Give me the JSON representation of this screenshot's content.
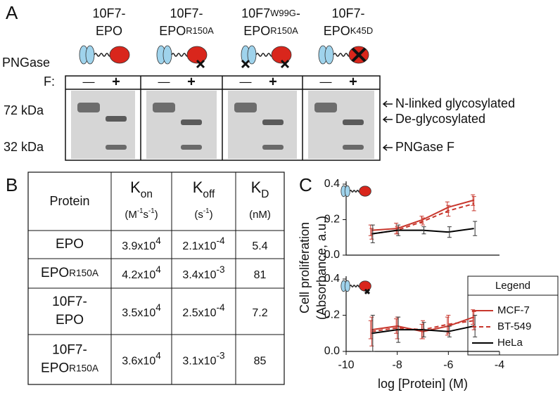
{
  "panel_a": {
    "label": "A",
    "constructs": [
      {
        "lines": [
          [
            {
              "text": "10F7-"
            }
          ],
          [
            {
              "text": "EPO"
            }
          ]
        ]
      },
      {
        "lines": [
          [
            {
              "text": "10F7-"
            }
          ],
          [
            {
              "text": "EPO"
            },
            {
              "small": "R150A"
            }
          ]
        ]
      },
      {
        "lines": [
          [
            {
              "text": "10F7"
            },
            {
              "small": "W99G"
            },
            {
              "text": "-"
            }
          ],
          [
            {
              "text": "EPO"
            },
            {
              "small": "R150A"
            }
          ]
        ]
      },
      {
        "lines": [
          [
            {
              "text": "10F7-"
            }
          ],
          [
            {
              "text": "EPO"
            },
            {
              "small": "K45D"
            }
          ]
        ]
      }
    ],
    "treatment_label": [
      "PNGase",
      "F:"
    ],
    "signs": [
      "—",
      "+"
    ],
    "markers": [
      "72 kDa",
      "32 kDa"
    ],
    "band_labels": [
      "N-linked glycosylated",
      "De-glycosylated",
      "PNGase F"
    ]
  },
  "panel_b": {
    "label": "B",
    "table": {
      "header": [
        {
          "name": "Protein"
        },
        {
          "symbol": "K",
          "subscript": "on",
          "unit": [
            {
              "text": "(M"
            },
            {
              "sup": "-1"
            },
            {
              "text": "s"
            },
            {
              "sup": "-1"
            },
            {
              "text": ")"
            }
          ]
        },
        {
          "symbol": "K",
          "subscript": "off",
          "unit": [
            {
              "text": "(s"
            },
            {
              "sup": "-1"
            },
            {
              "text": ")"
            }
          ]
        },
        {
          "symbol": "K",
          "subscript": "D",
          "unit": [
            {
              "text": "(nM)"
            }
          ]
        }
      ],
      "rows": [
        {
          "protein": [
            [
              {
                "text": "EPO"
              }
            ]
          ],
          "kon": {
            "base": "3.9x10",
            "exp": "4"
          },
          "koff": {
            "base": "2.1x10",
            "exp": "-4"
          },
          "kd": 5.4
        },
        {
          "protein": [
            [
              {
                "text": "EPO"
              },
              {
                "small": "R150A"
              }
            ]
          ],
          "kon": {
            "base": "4.2x10",
            "exp": "4"
          },
          "koff": {
            "base": "3.4x10",
            "exp": "-3"
          },
          "kd": 81
        },
        {
          "protein": [
            [
              {
                "text": "10F7-"
              }
            ],
            [
              {
                "text": "EPO"
              }
            ]
          ],
          "kon": {
            "base": "3.5x10",
            "exp": "4"
          },
          "koff": {
            "base": "2.5x10",
            "exp": "-4"
          },
          "kd": 7.2
        },
        {
          "protein": [
            [
              {
                "text": "10F7-"
              }
            ],
            [
              {
                "text": "EPO"
              },
              {
                "small": "R150A"
              }
            ]
          ],
          "kon": {
            "base": "3.6x10",
            "exp": "4"
          },
          "koff": {
            "base": "3.1x10",
            "exp": "-3"
          },
          "kd": 85
        }
      ]
    }
  },
  "panel_c": {
    "label": "C"
  },
  "chart_data": [
    {
      "type": "line",
      "x": [
        -9,
        -8,
        -7,
        -6,
        -5
      ],
      "xlim": [
        -10,
        -4
      ],
      "ylim": [
        0,
        0.4
      ],
      "yticks": [
        {
          "value": 0,
          "label": "0.0"
        },
        0.2,
        0.4
      ],
      "series": [
        {
          "name": "MCF-7",
          "color": "#c8372d",
          "line_style": "solid",
          "values": [
            0.14,
            0.15,
            0.2,
            0.27,
            0.31
          ],
          "errors": [
            0.03,
            0.03,
            0.02,
            0.03,
            0.03
          ]
        },
        {
          "name": "BT-549",
          "color": "#c8372d",
          "line_style": "dashed",
          "values": [
            0.12,
            0.14,
            0.19,
            0.25,
            0.29
          ],
          "errors": [
            0.03,
            0.02,
            0.02,
            0.03,
            0.04
          ]
        },
        {
          "name": "HeLa",
          "color": "#000000",
          "line_style": "solid",
          "values": [
            0.12,
            0.14,
            0.14,
            0.13,
            0.15
          ],
          "errors": [
            0.05,
            0.03,
            0.02,
            0.03,
            0.04
          ]
        }
      ]
    },
    {
      "type": "line",
      "x": [
        -9,
        -8,
        -7,
        -6,
        -5
      ],
      "xlim": [
        -10,
        -4
      ],
      "xticks": [
        -10,
        -8,
        -6,
        -4
      ],
      "xlabel": "log [Protein] (M)",
      "ylabel": [
        "Cell proliferation",
        "(Absorbance, a.u.)"
      ],
      "ylim": [
        0,
        0.4
      ],
      "yticks": [
        {
          "value": 0,
          "label": "0.0"
        },
        0.2,
        0.4
      ],
      "legend_title": "Legend",
      "series": [
        {
          "name": "MCF-7",
          "color": "#c8372d",
          "line_style": "solid",
          "values": [
            0.12,
            0.14,
            0.11,
            0.14,
            0.19
          ],
          "errors": [
            0.05,
            0.04,
            0.04,
            0.05,
            0.04
          ]
        },
        {
          "name": "BT-549",
          "color": "#c8372d",
          "line_style": "dashed",
          "values": [
            0.11,
            0.13,
            0.12,
            0.15,
            0.17
          ],
          "errors": [
            0.08,
            0.06,
            0.05,
            0.05,
            0.05
          ]
        },
        {
          "name": "HeLa",
          "color": "#000000",
          "line_style": "solid",
          "values": [
            0.1,
            0.12,
            0.12,
            0.11,
            0.14
          ],
          "errors": [
            0.1,
            0.07,
            0.04,
            0.03,
            0.06
          ]
        }
      ]
    }
  ]
}
